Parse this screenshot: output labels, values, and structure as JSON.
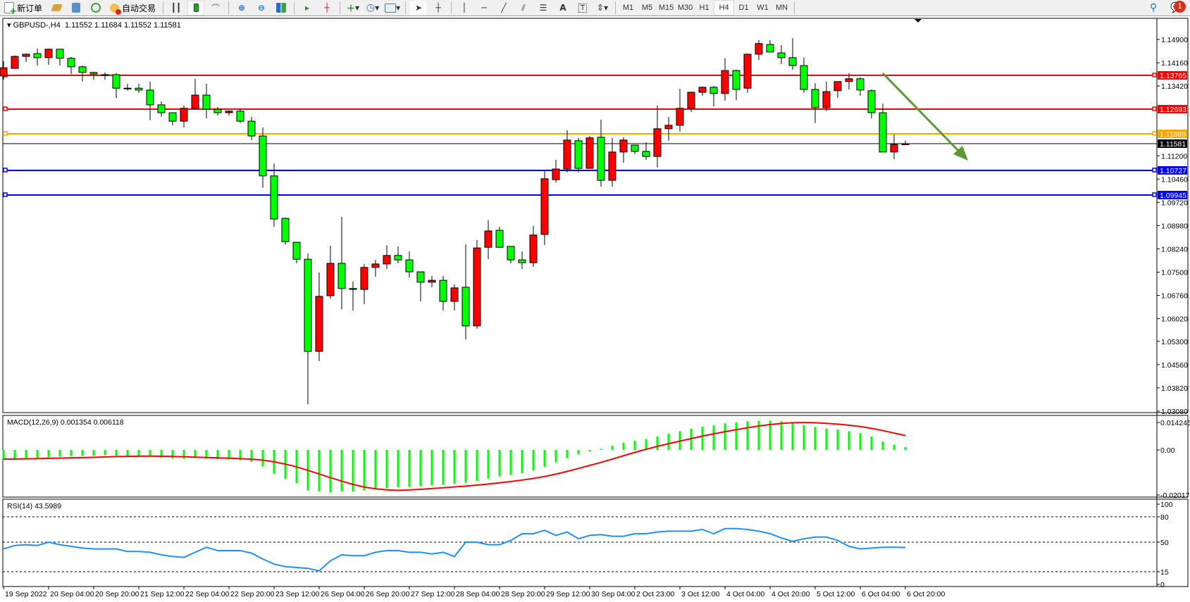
{
  "toolbar": {
    "new_order": "新订单",
    "auto_trading": "自动交易",
    "timeframes": [
      "M1",
      "M5",
      "M15",
      "M30",
      "H1",
      "H4",
      "D1",
      "W1",
      "MN"
    ],
    "active_timeframe": "H4",
    "notification_count": "1"
  },
  "chart_data": [
    {
      "type": "candlestick",
      "symbol": "GBPUSD-,H4",
      "ohlc_label": "1.11552 1.11684 1.11552 1.11581",
      "up_color": "#ff0000",
      "down_color": "#00ff00",
      "ylim": [
        1.0308,
        1.149
      ],
      "y_ticks": [
        "1.14900",
        "1.14160",
        "1.13420",
        "1.11200",
        "1.10460",
        "1.09720",
        "1.08980",
        "1.08240",
        "1.07500",
        "1.06760",
        "1.06020",
        "1.05300",
        "1.04560",
        "1.03820",
        "1.03080"
      ],
      "x_ticks": [
        "19 Sep 2022",
        "20 Sep 04:00",
        "20 Sep 20:00",
        "21 Sep 12:00",
        "22 Sep 04:00",
        "22 Sep 20:00",
        "23 Sep 12:00",
        "26 Sep 04:00",
        "26 Sep 20:00",
        "27 Sep 12:00",
        "28 Sep 04:00",
        "28 Sep 20:00",
        "29 Sep 12:00",
        "30 Sep 04:00",
        "2 Oct 23:00",
        "3 Oct 12:00",
        "4 Oct 04:00",
        "4 Oct 20:00",
        "5 Oct 12:00",
        "6 Oct 04:00",
        "6 Oct 20:00"
      ],
      "candles_format": [
        "open",
        "high",
        "low",
        "close"
      ],
      "candles": [
        [
          1.1374,
          1.1421,
          1.1362,
          1.14
        ],
        [
          1.1398,
          1.1439,
          1.1398,
          1.1436
        ],
        [
          1.1436,
          1.1445,
          1.1418,
          1.1443
        ],
        [
          1.1445,
          1.1461,
          1.1407,
          1.1432
        ],
        [
          1.1432,
          1.1461,
          1.1409,
          1.1459
        ],
        [
          1.1459,
          1.1459,
          1.1407,
          1.143
        ],
        [
          1.143,
          1.1434,
          1.138,
          1.1403
        ],
        [
          1.1403,
          1.1407,
          1.1356,
          1.1385
        ],
        [
          1.1385,
          1.1387,
          1.1362,
          1.138
        ],
        [
          1.1378,
          1.1385,
          1.1362,
          1.1378
        ],
        [
          1.1378,
          1.1383,
          1.1304,
          1.1335
        ],
        [
          1.1335,
          1.1349,
          1.1327,
          1.1335
        ],
        [
          1.1335,
          1.1349,
          1.132,
          1.1329
        ],
        [
          1.1329,
          1.1356,
          1.1233,
          1.1282
        ],
        [
          1.1282,
          1.1293,
          1.1244,
          1.1257
        ],
        [
          1.1257,
          1.1257,
          1.1217,
          1.123
        ],
        [
          1.123,
          1.128,
          1.121,
          1.1271
        ],
        [
          1.1271,
          1.1365,
          1.1266,
          1.1313
        ],
        [
          1.1313,
          1.1349,
          1.1239,
          1.1268
        ],
        [
          1.1268,
          1.1275,
          1.1248,
          1.1257
        ],
        [
          1.1257,
          1.1264,
          1.1248,
          1.1262
        ],
        [
          1.1262,
          1.1268,
          1.1224,
          1.123
        ],
        [
          1.123,
          1.1244,
          1.117,
          1.1183
        ],
        [
          1.1183,
          1.121,
          1.1018,
          1.1056
        ],
        [
          1.1056,
          1.1096,
          1.0894,
          1.0919
        ],
        [
          1.0921,
          1.0924,
          1.0838,
          1.0847
        ],
        [
          1.0845,
          1.0845,
          1.0778,
          1.0791
        ],
        [
          1.0791,
          1.0809,
          1.033,
          1.0498
        ],
        [
          1.0498,
          1.0749,
          1.0467,
          1.0673
        ],
        [
          1.0675,
          1.0834,
          1.0666,
          1.0778
        ],
        [
          1.0778,
          1.0926,
          1.0632,
          1.0698
        ],
        [
          1.0698,
          1.072,
          1.0628,
          1.0695
        ],
        [
          1.0695,
          1.0776,
          1.0648,
          1.0765
        ],
        [
          1.0765,
          1.0789,
          1.0735,
          1.0776
        ],
        [
          1.0776,
          1.0836,
          1.076,
          1.0803
        ],
        [
          1.0803,
          1.0832,
          1.0778,
          1.0789
        ],
        [
          1.0789,
          1.0816,
          1.0733,
          1.0751
        ],
        [
          1.0751,
          1.0751,
          1.0657,
          1.0718
        ],
        [
          1.0718,
          1.0738,
          1.0702,
          1.0724
        ],
        [
          1.0724,
          1.0738,
          1.0628,
          1.0657
        ],
        [
          1.0657,
          1.0711,
          1.0628,
          1.07
        ],
        [
          1.0702,
          1.0838,
          1.0536,
          1.0579
        ],
        [
          1.0579,
          1.0852,
          1.057,
          1.0827
        ],
        [
          1.0829,
          1.0915,
          1.0791,
          1.0881
        ],
        [
          1.0883,
          1.0894,
          1.0829,
          1.0829
        ],
        [
          1.0832,
          1.0832,
          1.0778,
          1.0789
        ],
        [
          1.0789,
          1.0816,
          1.076,
          1.078
        ],
        [
          1.078,
          1.0897,
          1.0767,
          1.0868
        ],
        [
          1.087,
          1.1074,
          1.0836,
          1.1047
        ],
        [
          1.1044,
          1.1107,
          1.1035,
          1.1078
        ],
        [
          1.1078,
          1.1201,
          1.1067,
          1.117
        ],
        [
          1.1168,
          1.1177,
          1.1067,
          1.108
        ],
        [
          1.108,
          1.1183,
          1.108,
          1.1177
        ],
        [
          1.1179,
          1.1235,
          1.1022,
          1.1042
        ],
        [
          1.1042,
          1.1177,
          1.1022,
          1.1132
        ],
        [
          1.1132,
          1.1179,
          1.1098,
          1.117
        ],
        [
          1.1154,
          1.1154,
          1.1125,
          1.1134
        ],
        [
          1.1134,
          1.1163,
          1.1107,
          1.1118
        ],
        [
          1.1118,
          1.128,
          1.1083,
          1.1206
        ],
        [
          1.1206,
          1.1244,
          1.1168,
          1.1217
        ],
        [
          1.1217,
          1.1333,
          1.1197,
          1.1271
        ],
        [
          1.1271,
          1.1324,
          1.1259,
          1.1322
        ],
        [
          1.1322,
          1.134,
          1.1311,
          1.1338
        ],
        [
          1.1338,
          1.1342,
          1.1277,
          1.1318
        ],
        [
          1.1318,
          1.143,
          1.1295,
          1.1391
        ],
        [
          1.1391,
          1.1394,
          1.1297,
          1.1331
        ],
        [
          1.1335,
          1.1445,
          1.132,
          1.1443
        ],
        [
          1.1443,
          1.1488,
          1.1425,
          1.1477
        ],
        [
          1.1474,
          1.1488,
          1.145,
          1.145
        ],
        [
          1.1447,
          1.1472,
          1.1412,
          1.1432
        ],
        [
          1.1432,
          1.1494,
          1.1394,
          1.1407
        ],
        [
          1.1407,
          1.1432,
          1.132,
          1.1331
        ],
        [
          1.1331,
          1.1351,
          1.1224,
          1.1273
        ],
        [
          1.1273,
          1.1356,
          1.1262,
          1.1324
        ],
        [
          1.1327,
          1.1356,
          1.1304,
          1.1356
        ],
        [
          1.1356,
          1.1383,
          1.1331,
          1.1365
        ],
        [
          1.1365,
          1.1369,
          1.1311,
          1.1329
        ],
        [
          1.1327,
          1.1331,
          1.1239,
          1.1257
        ],
        [
          1.1257,
          1.1286,
          1.1132,
          1.1132
        ],
        [
          1.1132,
          1.1188,
          1.1109,
          1.1156
        ],
        [
          1.11552,
          1.11684,
          1.11552,
          1.11581
        ]
      ],
      "levels": [
        {
          "price": "1.13765",
          "color": "#ff0000"
        },
        {
          "price": "1.12693",
          "color": "#ff0000"
        },
        {
          "price": "1.11889",
          "color": "#ffa500"
        },
        {
          "price": "1.10727",
          "color": "#0000ff"
        },
        {
          "price": "1.09945",
          "color": "#0000ff"
        }
      ],
      "bid": {
        "price": "1.11581",
        "color": "#000000"
      },
      "trend_arrow_color": "#5b9a32"
    },
    {
      "type": "bar+line",
      "title": "MACD(12,26,9) 0.001354 0.006118",
      "ylim": [
        -0.020171,
        0.014245
      ],
      "y_ticks": [
        "0.014245",
        "0.00",
        "-0.020171"
      ],
      "histogram_color": "#00ff00",
      "signal_color": "#ff0000",
      "macd": [
        -0.0044,
        -0.0043,
        -0.0041,
        -0.004,
        -0.0036,
        -0.0033,
        -0.003,
        -0.0028,
        -0.0027,
        -0.0026,
        -0.0028,
        -0.003,
        -0.0031,
        -0.0035,
        -0.0038,
        -0.0041,
        -0.0043,
        -0.004,
        -0.0042,
        -0.0044,
        -0.0046,
        -0.005,
        -0.0058,
        -0.008,
        -0.0115,
        -0.014,
        -0.016,
        -0.0195,
        -0.02,
        -0.0205,
        -0.02,
        -0.02,
        -0.0195,
        -0.019,
        -0.0185,
        -0.018,
        -0.0178,
        -0.0175,
        -0.017,
        -0.0168,
        -0.0162,
        -0.0158,
        -0.015,
        -0.0138,
        -0.0128,
        -0.012,
        -0.0112,
        -0.01,
        -0.0082,
        -0.006,
        -0.004,
        -0.0022,
        -0.0008,
        0.0005,
        0.002,
        0.0035,
        0.0045,
        0.0052,
        0.0065,
        0.0078,
        0.009,
        0.0102,
        0.0112,
        0.0118,
        0.0128,
        0.0132,
        0.0138,
        0.014,
        0.014,
        0.0138,
        0.0132,
        0.012,
        0.011,
        0.0102,
        0.0098,
        0.009,
        0.008,
        0.0065,
        0.004,
        0.0025,
        0.001354
      ]
    },
    {
      "type": "line",
      "title": "RSI(14) 43.5989",
      "ylim": [
        0,
        100
      ],
      "y_ticks": [
        "100",
        "80",
        "50",
        "15",
        "0"
      ],
      "levels": [
        80,
        50,
        15
      ],
      "color": "#1e90ff",
      "values": [
        42,
        46,
        47,
        46,
        50,
        47,
        45,
        43,
        42,
        42,
        42,
        39,
        39,
        38,
        35,
        33,
        32,
        38,
        44,
        40,
        40,
        40,
        37,
        30,
        24,
        21,
        20,
        19,
        16,
        28,
        35,
        34,
        34,
        38,
        40,
        40,
        38,
        38,
        36,
        38,
        33,
        50,
        50,
        47,
        47,
        52,
        60,
        60,
        64,
        58,
        62,
        54,
        58,
        59,
        57,
        57,
        60,
        60,
        62,
        63,
        63,
        63,
        65,
        60,
        66,
        66,
        65,
        63,
        60,
        55,
        51,
        54,
        56,
        56,
        52,
        45,
        42,
        43,
        44,
        44,
        43.5989
      ]
    }
  ]
}
